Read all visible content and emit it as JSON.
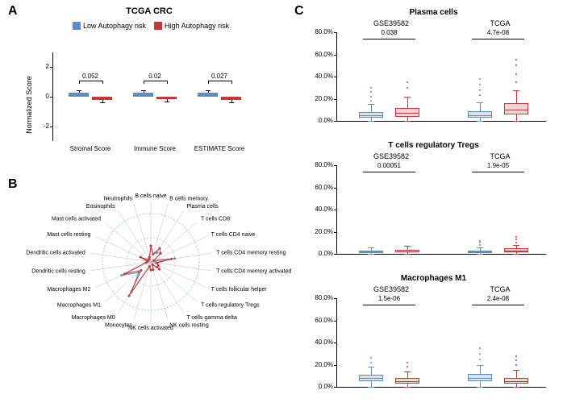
{
  "panelA": {
    "letter": "A",
    "title": "TCGA CRC",
    "legend": {
      "low": "Low Autophagy risk",
      "high": "High Autophagy risk"
    },
    "colors": {
      "low": "#5b8ec9",
      "high": "#c83737"
    },
    "ylabel": "Normalized Score",
    "yticks": [
      -2,
      0,
      2
    ],
    "groups": [
      {
        "label": "Stromal Score",
        "low": 0.25,
        "high": -0.2,
        "pval": "0.052"
      },
      {
        "label": "Immune Score",
        "low": 0.25,
        "high": -0.15,
        "pval": "0.02"
      },
      {
        "label": "ESTIMATE Score",
        "low": 0.25,
        "high": -0.2,
        "pval": "0.027"
      }
    ],
    "ylim": [
      -3,
      3
    ]
  },
  "panelB": {
    "letter": "B",
    "labels": [
      "B cells naive",
      "B cells memory",
      "Plasma cells",
      "T cells CD8",
      "T cells CD4 naive",
      "T cells CD4 memory resting",
      "T cells CD4 memory activated",
      "T cells follicular helper",
      "T cells regulatory  Tregs",
      "T cells gamma delta",
      "NK cells resting",
      "NK cells activated",
      "Monocytes",
      "Macrophages M0",
      "Macrophages M1",
      "Macrophages M2",
      "Dendritic cells resting",
      "Dendritic cells activated",
      "Mast cells resting",
      "Mast cells activated",
      "Eosinophils",
      "Neutrophils"
    ],
    "low_vals": [
      0.1,
      0.05,
      0.07,
      0.08,
      0.02,
      0.15,
      0.03,
      0.05,
      0.05,
      0.02,
      0.05,
      0.05,
      0.03,
      0.22,
      0.1,
      0.2,
      0.03,
      0.02,
      0.07,
      0.02,
      0.02,
      0.03
    ],
    "high_vals": [
      0.1,
      0.05,
      0.1,
      0.08,
      0.02,
      0.13,
      0.04,
      0.05,
      0.07,
      0.02,
      0.05,
      0.05,
      0.03,
      0.25,
      0.08,
      0.18,
      0.03,
      0.02,
      0.07,
      0.02,
      0.02,
      0.03
    ],
    "colors": {
      "low": "#5b8ec9",
      "high": "#c83737",
      "ring1": "#8fd4d4",
      "ring2": "#cccccc"
    },
    "maxval": 0.3
  },
  "panelC": {
    "letter": "C",
    "colors": {
      "low": "#5b8ec9",
      "high": "#c83737",
      "low_fill": "#d6e3f2",
      "high_fill": "#f2d6d6"
    },
    "yticks": [
      "0.0%",
      "20.0%",
      "40.0%",
      "60.0%",
      "80.0%"
    ],
    "ymax": 80,
    "panels": [
      {
        "title": "Plasma cells",
        "subs": [
          {
            "label": "GSE39582",
            "pval": "0.038",
            "low": {
              "q1": 3,
              "med": 5,
              "q3": 8,
              "wlo": 0,
              "whi": 15,
              "out": [
                18,
                22,
                26,
                30
              ]
            },
            "high": {
              "q1": 4,
              "med": 7,
              "q3": 12,
              "wlo": 0,
              "whi": 22,
              "out": [
                30,
                35
              ]
            }
          },
          {
            "label": "TCGA",
            "pval": "4.7e-08",
            "low": {
              "q1": 3,
              "med": 5,
              "q3": 9,
              "wlo": 0,
              "whi": 17,
              "out": [
                23,
                28,
                33,
                38
              ]
            },
            "high": {
              "q1": 6,
              "med": 10,
              "q3": 16,
              "wlo": 0,
              "whi": 28,
              "out": [
                35,
                42,
                50,
                55
              ]
            }
          }
        ]
      },
      {
        "title": "T cells regulatory  Tregs",
        "subs": [
          {
            "label": "GSE39582",
            "pval": "0.00051",
            "low": {
              "q1": 1,
              "med": 2,
              "q3": 3,
              "wlo": 0,
              "whi": 6,
              "out": []
            },
            "high": {
              "q1": 1.5,
              "med": 2.5,
              "q3": 4,
              "wlo": 0,
              "whi": 7,
              "out": []
            }
          },
          {
            "label": "TCGA",
            "pval": "1.9e-05",
            "low": {
              "q1": 1,
              "med": 2,
              "q3": 3,
              "wlo": 0,
              "whi": 6,
              "out": [
                8,
                10,
                12
              ]
            },
            "high": {
              "q1": 1.5,
              "med": 3,
              "q3": 5,
              "wlo": 0,
              "whi": 8,
              "out": [
                10,
                13,
                15
              ]
            }
          }
        ]
      },
      {
        "title": "Macrophages M1",
        "subs": [
          {
            "label": "GSE39582",
            "pval": "1.5e-06",
            "low": {
              "q1": 5,
              "med": 8,
              "q3": 11,
              "wlo": 0,
              "whi": 18,
              "out": [
                22,
                26
              ]
            },
            "high": {
              "q1": 3,
              "med": 5,
              "q3": 8,
              "wlo": 0,
              "whi": 14,
              "out": [
                18,
                22
              ]
            }
          },
          {
            "label": "TCGA",
            "pval": "2.4e-08",
            "low": {
              "q1": 5,
              "med": 8,
              "q3": 12,
              "wlo": 0,
              "whi": 20,
              "out": [
                25,
                30,
                35
              ]
            },
            "high": {
              "q1": 3,
              "med": 5,
              "q3": 8,
              "wlo": 0,
              "whi": 15,
              "out": [
                20,
                24,
                28
              ]
            }
          }
        ]
      }
    ]
  }
}
